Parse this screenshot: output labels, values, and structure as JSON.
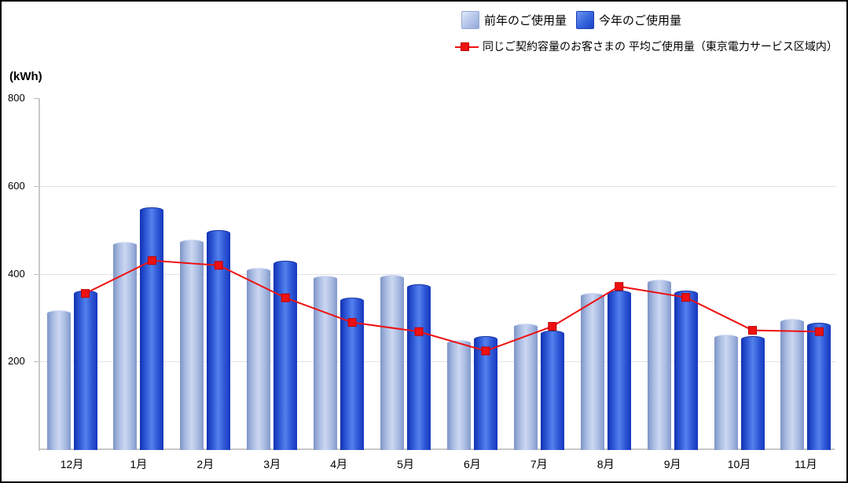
{
  "legend": {
    "prev_label": "前年のご使用量",
    "this_label": "今年のご使用量",
    "avg_label": "同じご契約容量のお客さまの 平均ご使用量（東京電力サービス区域内）"
  },
  "axis": {
    "unit_label": "(kWh)",
    "yticks": [
      800,
      600,
      400,
      200
    ],
    "ymax": 800
  },
  "colors": {
    "bar_prev_center": "#ccd7f1",
    "bar_prev_edge": "#7e94c6",
    "bar_this_center": "#5381ee",
    "bar_this_edge": "#1131b2",
    "avg_line": "#ee1111",
    "avg_marker_border": "#c00000",
    "gridline": "#e3e3e3",
    "axis_line": "#c9c9c9"
  },
  "chart_data": {
    "type": "bar",
    "categories": [
      "12月",
      "1月",
      "2月",
      "3月",
      "4月",
      "5月",
      "6月",
      "7月",
      "8月",
      "9月",
      "10月",
      "11月"
    ],
    "series": [
      {
        "name": "前年のご使用量",
        "type": "bar",
        "values": [
          316,
          472,
          477,
          413,
          395,
          398,
          249,
          287,
          356,
          386,
          262,
          297
        ]
      },
      {
        "name": "今年のご使用量",
        "type": "bar",
        "values": [
          362,
          552,
          499,
          429,
          345,
          375,
          257,
          270,
          361,
          361,
          257,
          288
        ]
      },
      {
        "name": "同じご契約容量のお客さまの平均ご使用量（東京電力サービス区域内）",
        "type": "line",
        "values": [
          355,
          430,
          419,
          345,
          289,
          268,
          224,
          280,
          371,
          346,
          271,
          268
        ]
      }
    ],
    "title": "",
    "xlabel": "",
    "ylabel": "(kWh)",
    "ylim": [
      0,
      800
    ],
    "grid": true,
    "legend_position": "top"
  }
}
